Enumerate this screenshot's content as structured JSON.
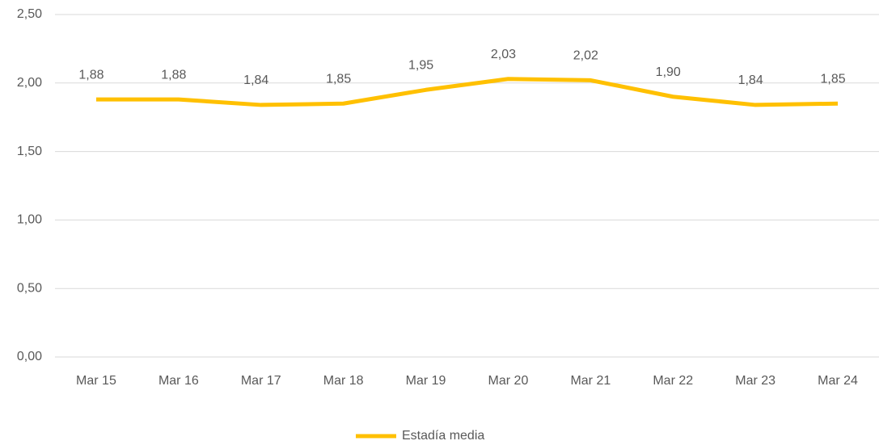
{
  "chart_data": {
    "type": "line",
    "categories": [
      "Mar 15",
      "Mar 16",
      "Mar 17",
      "Mar 18",
      "Mar 19",
      "Mar 20",
      "Mar 21",
      "Mar 22",
      "Mar 23",
      "Mar 24"
    ],
    "series": [
      {
        "name": "Estadía media",
        "color": "#ffc000",
        "values": [
          1.88,
          1.88,
          1.84,
          1.85,
          1.95,
          2.03,
          2.02,
          1.9,
          1.84,
          1.85
        ],
        "value_labels": [
          "1,88",
          "1,88",
          "1,84",
          "1,85",
          "1,95",
          "2,03",
          "2,02",
          "1,90",
          "1,84",
          "1,85"
        ]
      }
    ],
    "ylim": [
      0,
      2.5
    ],
    "yticks": [
      {
        "value": 0,
        "label": "0,00"
      },
      {
        "value": 0.5,
        "label": "0,50"
      },
      {
        "value": 1,
        "label": "1,00"
      },
      {
        "value": 1.5,
        "label": "1,50"
      },
      {
        "value": 2,
        "label": "2,00"
      },
      {
        "value": 2.5,
        "label": "2,50"
      }
    ],
    "grid": true,
    "legend": "bottom"
  }
}
